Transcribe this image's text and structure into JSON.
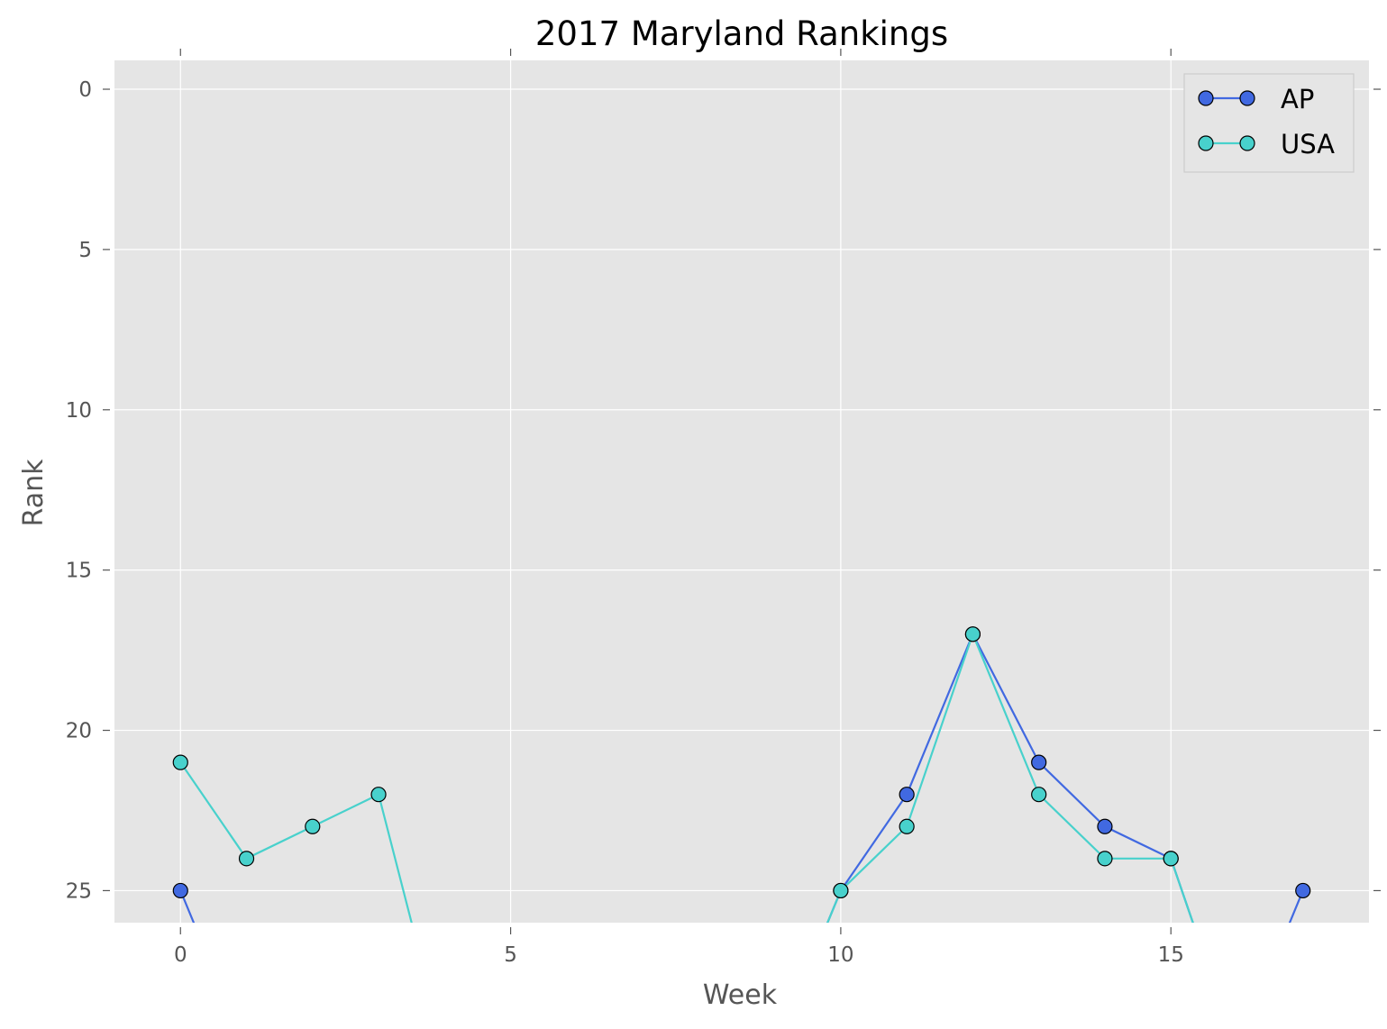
{
  "chart_data": {
    "type": "line",
    "title": "2017 Maryland Rankings",
    "xlabel": "Week",
    "ylabel": "Rank",
    "xlim": [
      -1,
      18
    ],
    "ylim": [
      26,
      -0.9
    ],
    "y_inverted": true,
    "grid": true,
    "legend_position": "top-right",
    "x_ticks": [
      0,
      5,
      10,
      15
    ],
    "y_ticks": [
      0,
      5,
      10,
      15,
      20,
      25
    ],
    "series": [
      {
        "name": "AP",
        "color": "#4169e1",
        "points": [
          {
            "x": 0,
            "y": 25
          },
          {
            "x": 1,
            "y": 30
          },
          {
            "x": 9,
            "y": 30
          },
          {
            "x": 10,
            "y": 25
          },
          {
            "x": 11,
            "y": 22
          },
          {
            "x": 12,
            "y": 17
          },
          {
            "x": 13,
            "y": 21
          },
          {
            "x": 14,
            "y": 23
          },
          {
            "x": 15,
            "y": 24
          },
          {
            "x": 16,
            "y": 30
          },
          {
            "x": 17,
            "y": 25
          }
        ]
      },
      {
        "name": "USA",
        "color": "#48d1cc",
        "points": [
          {
            "x": 0,
            "y": 21
          },
          {
            "x": 1,
            "y": 24
          },
          {
            "x": 2,
            "y": 23
          },
          {
            "x": 3,
            "y": 22
          },
          {
            "x": 4,
            "y": 30
          },
          {
            "x": 9,
            "y": 30
          },
          {
            "x": 10,
            "y": 25
          },
          {
            "x": 11,
            "y": 23
          },
          {
            "x": 12,
            "y": 17
          },
          {
            "x": 13,
            "y": 22
          },
          {
            "x": 14,
            "y": 24
          },
          {
            "x": 15,
            "y": 24
          },
          {
            "x": 16,
            "y": 30
          }
        ]
      }
    ]
  },
  "colors": {
    "plot_background": "#e5e5e5",
    "grid": "#ffffff",
    "marker_edge": "#000000"
  }
}
